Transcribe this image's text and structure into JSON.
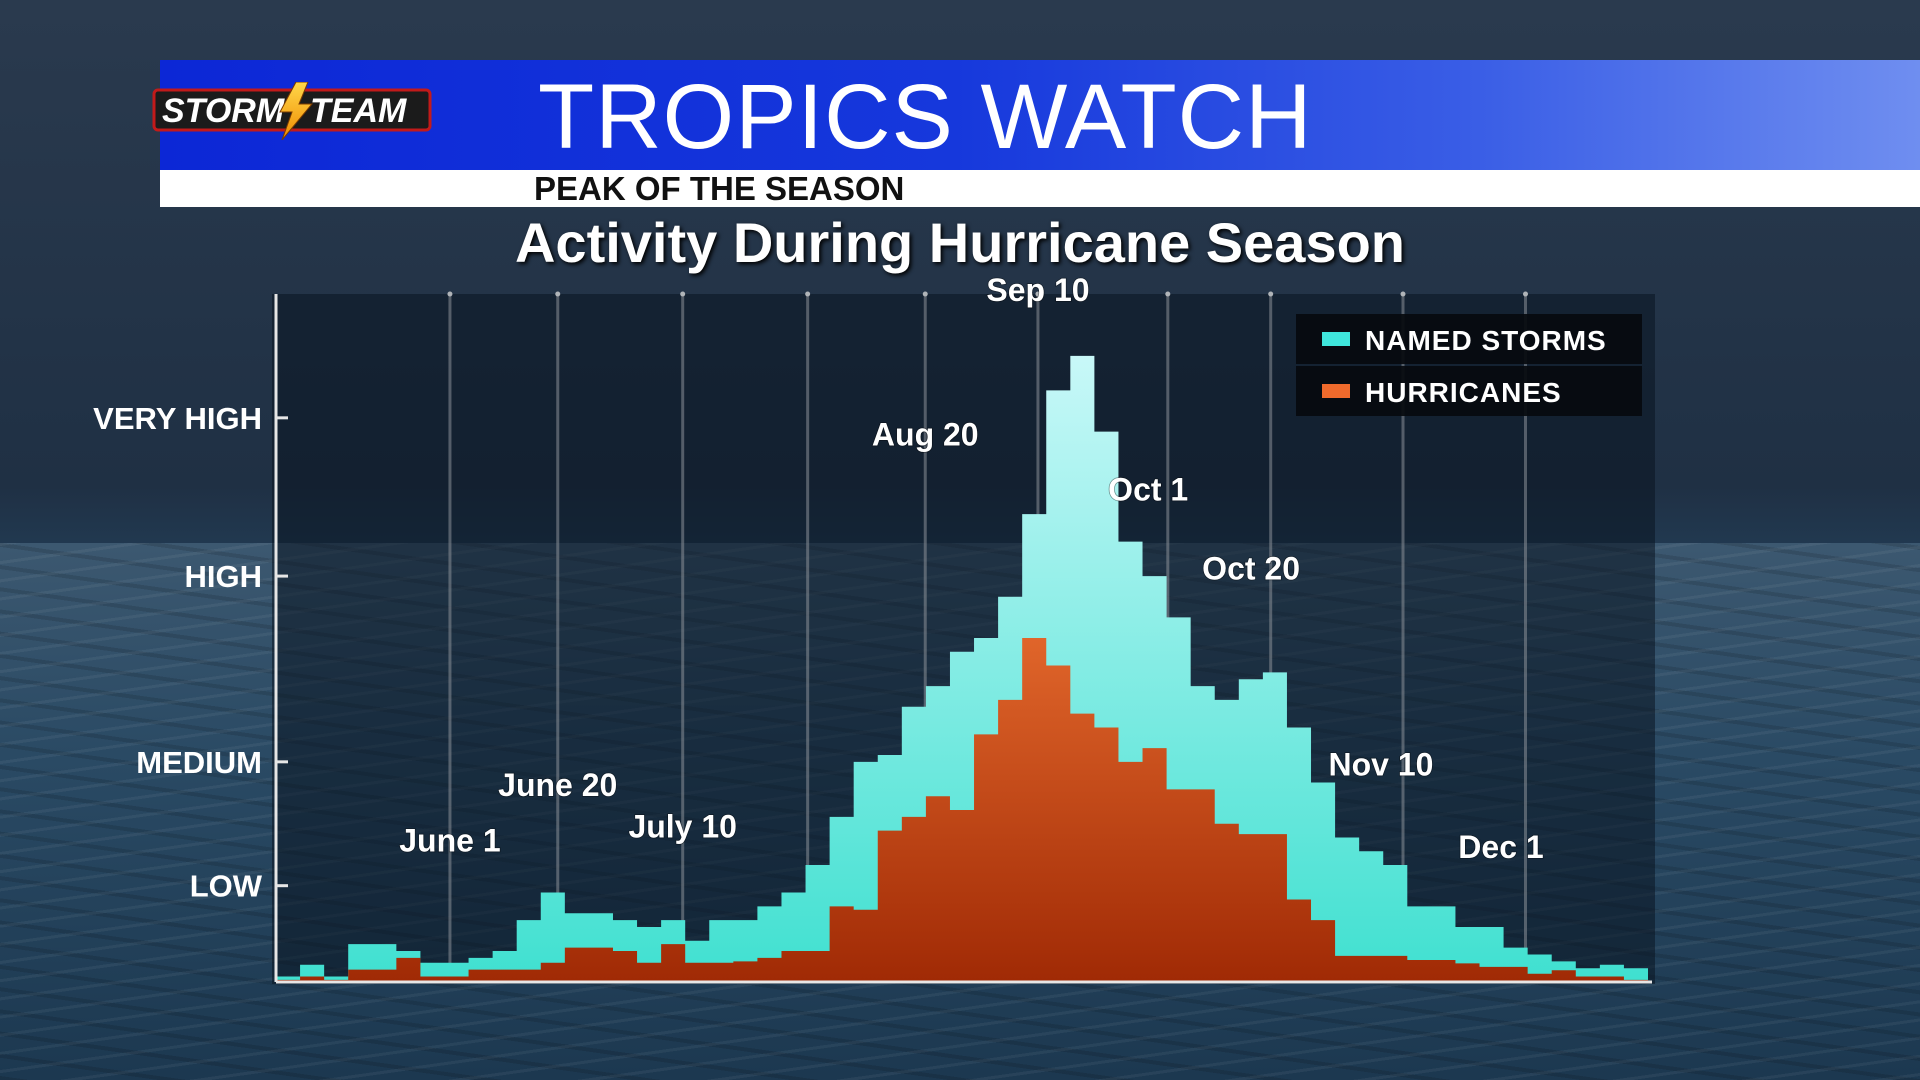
{
  "header": {
    "logo_left": "STORM",
    "logo_right": "TEAM",
    "title": "TROPICS WATCH",
    "subtitle": "PEAK OF THE SEASON"
  },
  "colors": {
    "named_storms_top": "#c8f8f8",
    "named_storms_bottom": "#3fe0d0",
    "hurricanes_top": "#e0652a",
    "hurricanes_bottom": "#a02a05",
    "banner_blue": "#0c27d6"
  },
  "chart_data": {
    "type": "area",
    "title": "Activity During Hurricane Season",
    "x_domain": [
      0,
      56
    ],
    "ylim": [
      0,
      100
    ],
    "y_ticks": [
      {
        "label": "LOW",
        "value": 14
      },
      {
        "label": "MEDIUM",
        "value": 32
      },
      {
        "label": "HIGH",
        "value": 59
      },
      {
        "label": "VERY HIGH",
        "value": 82
      }
    ],
    "date_annotations": [
      {
        "label": "June 1",
        "x": 7.1,
        "y": 19
      },
      {
        "label": "June 20",
        "x": 11.5,
        "y": 27
      },
      {
        "label": "July 10",
        "x": 16.6,
        "y": 21
      },
      {
        "label": "Aug 20",
        "x": 26.5,
        "y": 78
      },
      {
        "label": "Sep 10",
        "x": 31.1,
        "y": 99
      },
      {
        "label": "Oct 1",
        "x": 35.6,
        "y": 70
      },
      {
        "label": "Oct 20",
        "x": 39.8,
        "y": 58.5
      },
      {
        "label": "Nov 10",
        "x": 45.1,
        "y": 30
      },
      {
        "label": "Dec 1",
        "x": 50.0,
        "y": 18
      }
    ],
    "grid_x": [
      7.1,
      11.5,
      16.6,
      21.7,
      26.5,
      31.1,
      36.4,
      40.6,
      46.0,
      51.0
    ],
    "legend_position": "top-right",
    "series": [
      {
        "name": "NAMED STORMS",
        "values": [
          0.8,
          2.5,
          0.8,
          5.5,
          5.5,
          4.5,
          2.8,
          2.8,
          3.5,
          4.5,
          9,
          13,
          10,
          10,
          9,
          8,
          9,
          6,
          9,
          9,
          11,
          13,
          17,
          24,
          32,
          33,
          40,
          43,
          48,
          50,
          56,
          68,
          86,
          91,
          80,
          64,
          59,
          53,
          43,
          41,
          44,
          45,
          37,
          29,
          21,
          19,
          17,
          11,
          11,
          8,
          8,
          5,
          4,
          3,
          2,
          2.5,
          2
        ]
      },
      {
        "name": "HURRICANES",
        "values": [
          0.3,
          0.8,
          0.3,
          1.8,
          1.8,
          3.5,
          0.8,
          0.8,
          1.8,
          1.8,
          1.8,
          2.8,
          5,
          5,
          4.5,
          2.8,
          5.5,
          2.8,
          2.8,
          3,
          3.5,
          4.5,
          4.5,
          11,
          10.5,
          22,
          24,
          27,
          25,
          36,
          41,
          50,
          46,
          39,
          37,
          32,
          34,
          28,
          28,
          23,
          21.5,
          21.5,
          12,
          9,
          3.8,
          3.8,
          3.8,
          3.2,
          3.2,
          2.7,
          2.2,
          2.2,
          1.2,
          1.7,
          0.8,
          0.8,
          0.3
        ]
      }
    ]
  }
}
